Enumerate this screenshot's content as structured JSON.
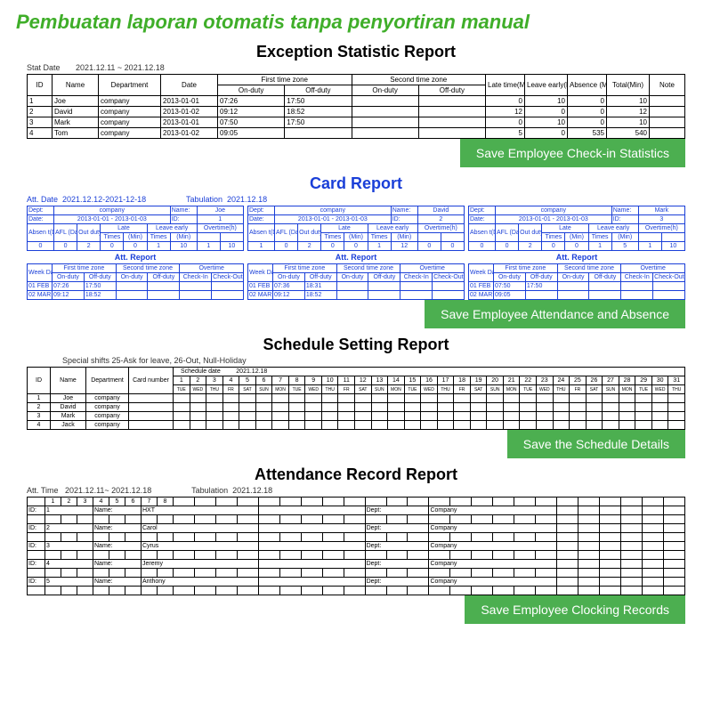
{
  "title": "Pembuatan laporan otomatis tanpa penyortiran manual",
  "colors": {
    "accent": "#3fae29",
    "button": "#4caf50",
    "blue": "#1a3fd8"
  },
  "report1": {
    "title": "Exception Statistic Report",
    "stat_label": "Stat Date",
    "stat_value": "2021.12.11 ~ 2021.12.18",
    "headers_top": [
      "ID",
      "Name",
      "Department",
      "Date",
      "First time zone",
      "Second time zone",
      "Late time(Min)",
      "Leave early(Min)",
      "Absence (Min)",
      "Total(Min)",
      "Note"
    ],
    "sub_on": "On-duty",
    "sub_off": "Off-duty",
    "rows": [
      [
        "1",
        "Joe",
        "company",
        "2013-01-01",
        "07:26",
        "17:50",
        "",
        "",
        "0",
        "10",
        "0",
        "10",
        ""
      ],
      [
        "2",
        "David",
        "company",
        "2013-01-02",
        "09:12",
        "18:52",
        "",
        "",
        "12",
        "0",
        "0",
        "12",
        ""
      ],
      [
        "3",
        "Mark",
        "company",
        "2013-01-01",
        "07:50",
        "17:50",
        "",
        "",
        "0",
        "10",
        "0",
        "10",
        ""
      ],
      [
        "4",
        "Tom",
        "company",
        "2013-01-02",
        "09:05",
        "",
        "",
        "",
        "5",
        "0",
        "535",
        "540",
        ""
      ]
    ],
    "button": "Save Employee Check-in Statistics"
  },
  "report2": {
    "title": "Card Report",
    "att_label": "Att. Date",
    "att_value": "2021.12.12-2021-12-18",
    "tab_label": "Tabulation",
    "tab_value": "2021.12.18",
    "panels": [
      {
        "dept": "company",
        "name": "Joe",
        "date": "2013-01-01 - 2013-01-03",
        "id": "1",
        "summary": [
          "0",
          "0",
          "2",
          "0",
          "0",
          "1",
          "10",
          "1",
          "10"
        ],
        "att": [
          [
            "01 FEB",
            "07:26",
            "17:50",
            "",
            "",
            "",
            ""
          ],
          [
            "02 MAR",
            "09:12",
            "18:52",
            "",
            "",
            "",
            ""
          ]
        ]
      },
      {
        "dept": "company",
        "name": "David",
        "date": "2013-01-01 - 2013-01-03",
        "id": "2",
        "summary": [
          "1",
          "0",
          "2",
          "0",
          "0",
          "1",
          "12",
          "0",
          "0"
        ],
        "att": [
          [
            "01 FEB",
            "07:36",
            "18:31",
            "",
            "",
            "",
            ""
          ],
          [
            "02 MAR",
            "09:12",
            "18:52",
            "",
            "",
            "",
            ""
          ]
        ]
      },
      {
        "dept": "company",
        "name": "Mark",
        "date": "2013-01-01 - 2013-01-03",
        "id": "3",
        "summary": [
          "0",
          "0",
          "2",
          "0",
          "0",
          "1",
          "5",
          "1",
          "10"
        ],
        "att": [
          [
            "01 FEB",
            "07:50",
            "17:50",
            "",
            "",
            "",
            ""
          ],
          [
            "02 MAR",
            "09:05",
            "",
            "",
            "",
            "",
            ""
          ]
        ]
      }
    ],
    "sum_hdr1": [
      "Absen t(Day)",
      "AFL (Day)",
      "Out duty",
      "Late",
      "Leave early",
      "Overtime(h)"
    ],
    "sum_hdr2": [
      "Times",
      "(Min)",
      "Times",
      "(Min)"
    ],
    "att_title": "Att. Report",
    "att_hdr1": [
      "Week Date",
      "First time zone",
      "Second time zone",
      "Overtime"
    ],
    "att_hdr2": [
      "On-duty",
      "Off-duty",
      "On-duty",
      "Off-duty",
      "Check-In",
      "Check-Out"
    ],
    "labels": {
      "dept": "Dept:",
      "name": "Name:",
      "date": "Date:",
      "id": "ID:"
    },
    "button": "Save Employee Attendance and Absence"
  },
  "report3": {
    "title": "Schedule Setting Report",
    "note": "Special shifts 25-Ask for leave, 26-Out, Null-Holiday",
    "sched_label": "Schedule date",
    "sched_value": "2021.12.18",
    "headers": [
      "ID",
      "Name",
      "Department",
      "Card number"
    ],
    "days": [
      "1",
      "2",
      "3",
      "4",
      "5",
      "6",
      "7",
      "8",
      "9",
      "10",
      "11",
      "12",
      "13",
      "14",
      "15",
      "16",
      "17",
      "18",
      "19",
      "20",
      "21",
      "22",
      "23",
      "24",
      "25",
      "26",
      "27",
      "28",
      "29",
      "30",
      "31"
    ],
    "weekdays": [
      "TUE",
      "WED",
      "THU",
      "FR",
      "SAT",
      "SUN",
      "MON",
      "TUE",
      "WED",
      "THU",
      "FR",
      "SAT",
      "SUN",
      "MON",
      "TUE",
      "WED",
      "THU",
      "FR",
      "SAT",
      "SUN",
      "MON",
      "TUE",
      "WED",
      "THU",
      "FR",
      "SAT",
      "SUN",
      "MON",
      "TUE",
      "WED",
      "THU"
    ],
    "rows": [
      [
        "1",
        "Joe",
        "company",
        ""
      ],
      [
        "2",
        "David",
        "company",
        ""
      ],
      [
        "3",
        "Mark",
        "company",
        ""
      ],
      [
        "4",
        "Jack",
        "company",
        ""
      ]
    ],
    "button": "Save the Schedule Details"
  },
  "report4": {
    "title": "Attendance Record Report",
    "att_label": "Att. Time",
    "att_value": "2021.12.11~ 2021.12.18",
    "tab_label": "Tabulation",
    "tab_value": "2021.12.18",
    "num_cols": [
      "1",
      "2",
      "3",
      "4",
      "5",
      "6",
      "7",
      "8"
    ],
    "id_label": "ID:",
    "name_label": "Name:",
    "dept_label": "Dept:",
    "dept_value": "Company",
    "rows": [
      {
        "id": "1",
        "name": "HXT"
      },
      {
        "id": "2",
        "name": "Carol"
      },
      {
        "id": "3",
        "name": "Cyrus"
      },
      {
        "id": "4",
        "name": "Jeremy"
      },
      {
        "id": "5",
        "name": "Anthony"
      }
    ],
    "button": "Save Employee Clocking Records"
  }
}
